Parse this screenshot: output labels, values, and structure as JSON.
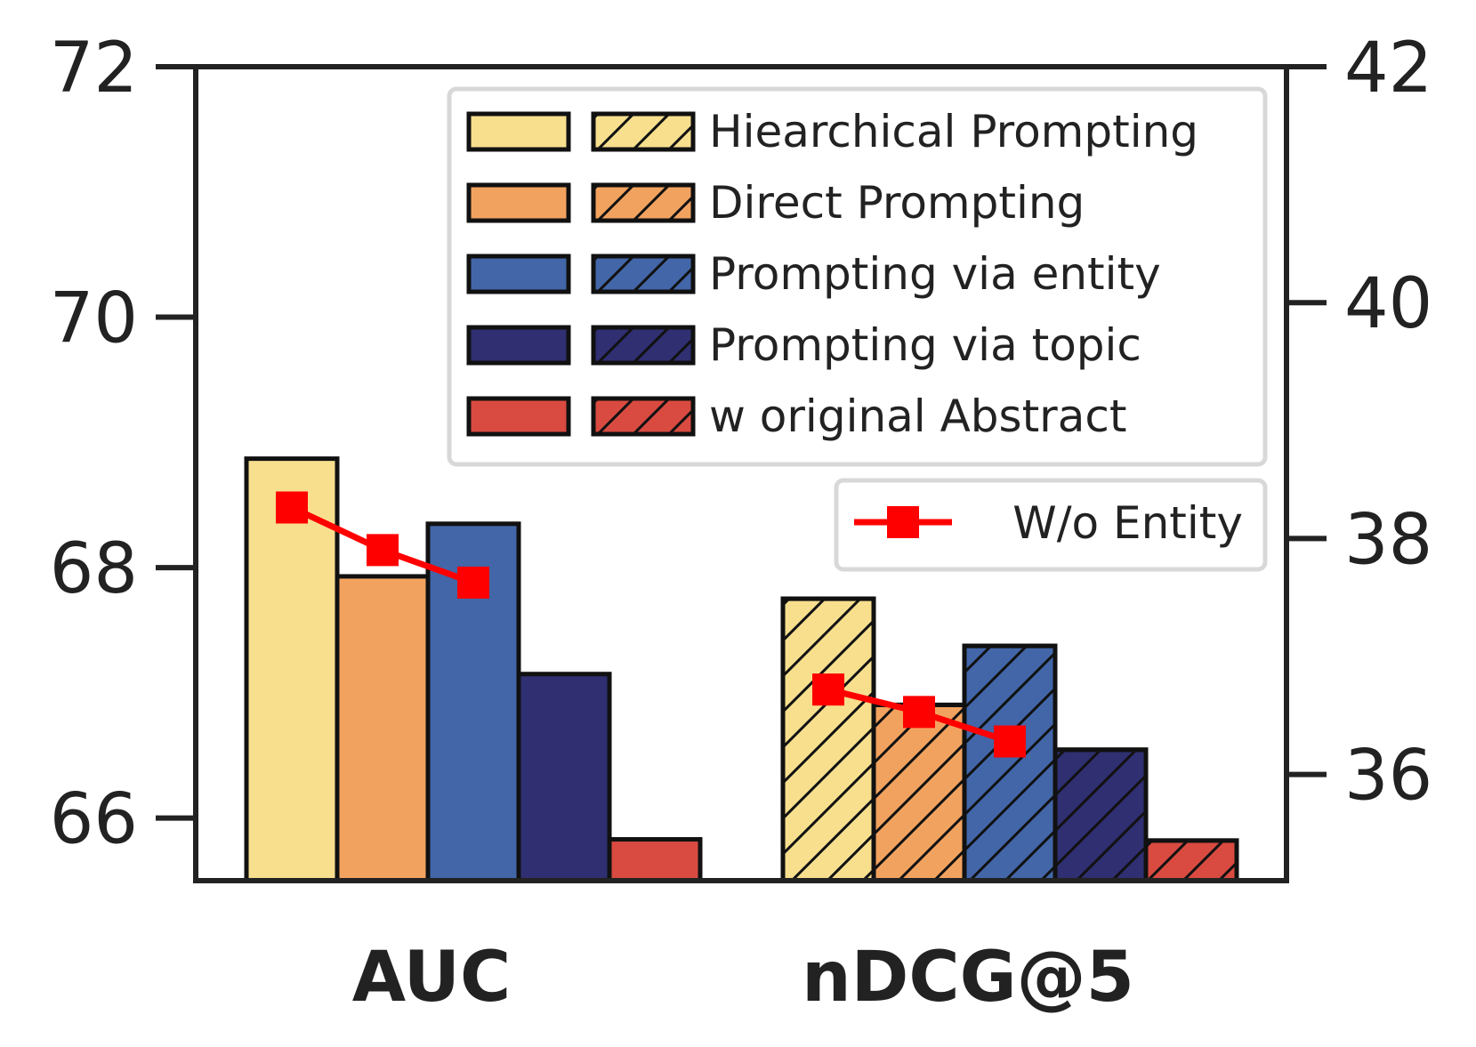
{
  "chart_data": {
    "type": "bar",
    "categories": [
      "AUC",
      "nDCG@5"
    ],
    "left_axis": {
      "ylim": [
        65.5,
        72
      ],
      "ticks": [
        66,
        68,
        70,
        72
      ],
      "applies_to": "AUC"
    },
    "right_axis": {
      "ylim": [
        35.1,
        42
      ],
      "ticks": [
        36,
        38,
        40,
        42
      ],
      "applies_to": "nDCG@5"
    },
    "series": [
      {
        "name": "Hiearchical Prompting",
        "color": "#f7df8e",
        "values": [
          68.87,
          37.49
        ]
      },
      {
        "name": "Direct Prompting",
        "color": "#f2a25f",
        "values": [
          67.93,
          36.59
        ]
      },
      {
        "name": "Prompting via entity",
        "color": "#4266a8",
        "values": [
          68.35,
          37.09
        ]
      },
      {
        "name": "Prompting via topic",
        "color": "#2f2f72",
        "values": [
          67.15,
          36.21
        ]
      },
      {
        "name": "w original Abstract",
        "color": "#d94a40",
        "values": [
          65.83,
          35.44
        ]
      }
    ],
    "line_series": {
      "name": "W/o Entity",
      "color": "#ff0000",
      "AUC": [
        68.48,
        68.14,
        67.88
      ],
      "nDCG@5": [
        36.72,
        36.53,
        36.28
      ]
    },
    "hatch_note": "nDCG@5 bars use diagonal hatching",
    "legend_position": "upper-right",
    "grid": false
  }
}
